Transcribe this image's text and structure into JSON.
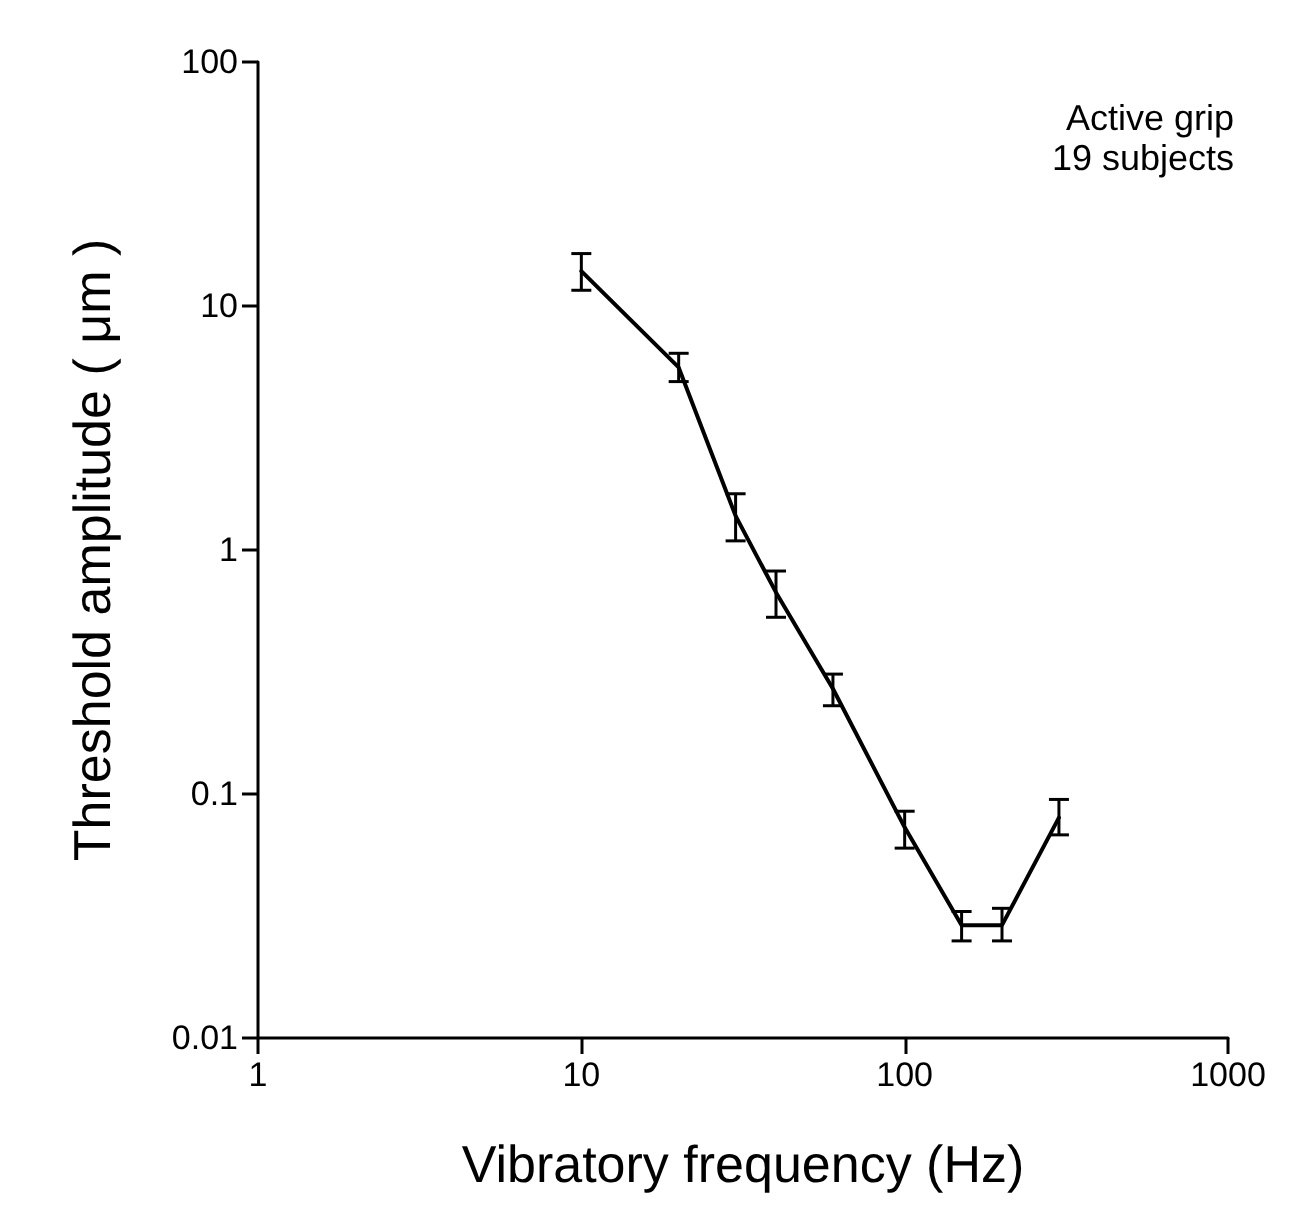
{
  "chart_data": {
    "type": "line",
    "xlabel": "Vibratory frequency (Hz)",
    "ylabel": "Threshold amplitude ( μm )",
    "annotations": [
      "Active grip",
      "19 subjects"
    ],
    "x": [
      10,
      20,
      30,
      40,
      60,
      100,
      150,
      200,
      300
    ],
    "series": [
      {
        "color": "#000000",
        "values": [
          13.9,
          5.6,
          1.38,
          0.67,
          0.27,
          0.073,
          0.029,
          0.029,
          0.08
        ],
        "errors": [
          [
            11.6,
            16.4
          ],
          [
            4.9,
            6.4
          ],
          [
            1.09,
            1.7
          ],
          [
            0.53,
            0.82
          ],
          [
            0.23,
            0.31
          ],
          [
            0.06,
            0.085
          ],
          [
            0.025,
            0.033
          ],
          [
            0.025,
            0.034
          ],
          [
            0.068,
            0.095
          ]
        ]
      }
    ],
    "log": "xy",
    "xlim": [
      1,
      1000
    ],
    "xticks": [
      1,
      10,
      100,
      1000
    ],
    "ylim": [
      0.01,
      100
    ],
    "yticks": [
      0.01,
      0.1,
      1,
      10,
      100
    ],
    "grid": false,
    "marker": "none",
    "line_style": "solid"
  }
}
